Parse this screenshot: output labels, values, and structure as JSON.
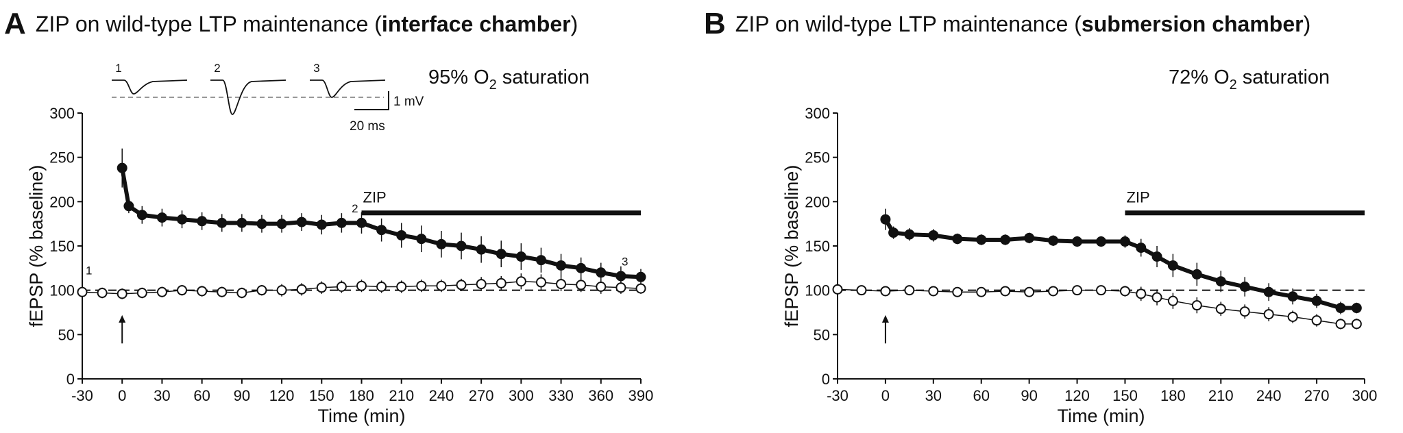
{
  "panels": {
    "A": {
      "letter": "A",
      "title_pre": "ZIP on wild-type LTP maintenance (",
      "title_bold": "interface chamber",
      "title_post": ")",
      "o2_value": "95%",
      "o2_unit_pre": "O",
      "o2_sub": "2",
      "o2_unit_post": "saturation"
    },
    "B": {
      "letter": "B",
      "title_pre": "ZIP on wild-type LTP maintenance (",
      "title_bold": "submersion chamber",
      "title_post": ")",
      "o2_value": "72%",
      "o2_unit_pre": "O",
      "o2_sub": "2",
      "o2_unit_post": "saturation"
    }
  },
  "chart_data": [
    {
      "type": "scatter",
      "panel": "A",
      "xlabel": "Time (min)",
      "ylabel": "fEPSP (% baseline)",
      "xlim": [
        -30,
        390
      ],
      "ylim": [
        0,
        300
      ],
      "xticks": [
        -30,
        0,
        30,
        60,
        90,
        120,
        150,
        180,
        210,
        240,
        270,
        300,
        330,
        360,
        390
      ],
      "yticks": [
        0,
        50,
        100,
        150,
        200,
        250,
        300
      ],
      "baseline": 100,
      "drug_bar": {
        "label": "ZIP",
        "start": 180,
        "end": 390
      },
      "arrow_at": 0,
      "trace_labels": {
        "1": -25,
        "2": 175,
        "3": 378
      },
      "scale_bar": {
        "voltage": "1 mV",
        "time": "20 ms"
      },
      "traces": [
        {
          "label": "1",
          "depth": 0.4
        },
        {
          "label": "2",
          "depth": 1.0
        },
        {
          "label": "3",
          "depth": 0.5
        }
      ],
      "series": [
        {
          "style": "filled",
          "x": [
            0,
            5,
            15,
            30,
            45,
            60,
            75,
            90,
            105,
            120,
            135,
            150,
            165,
            180,
            195,
            210,
            225,
            240,
            255,
            270,
            285,
            300,
            315,
            330,
            345,
            360,
            375,
            390
          ],
          "y": [
            238,
            195,
            185,
            182,
            180,
            178,
            176,
            176,
            175,
            175,
            177,
            174,
            176,
            176,
            168,
            162,
            158,
            152,
            150,
            146,
            141,
            138,
            134,
            128,
            125,
            120,
            116,
            115
          ],
          "err": [
            22,
            8,
            10,
            10,
            10,
            10,
            10,
            10,
            10,
            10,
            10,
            11,
            11,
            12,
            13,
            14,
            15,
            15,
            15,
            15,
            15,
            15,
            14,
            13,
            12,
            11,
            11,
            9
          ]
        },
        {
          "style": "open",
          "x": [
            -30,
            -15,
            0,
            15,
            30,
            45,
            60,
            75,
            90,
            105,
            120,
            135,
            150,
            165,
            180,
            195,
            210,
            225,
            240,
            255,
            270,
            285,
            300,
            315,
            330,
            345,
            360,
            375,
            390
          ],
          "y": [
            98,
            97,
            96,
            97,
            98,
            100,
            99,
            98,
            97,
            100,
            100,
            101,
            103,
            104,
            105,
            104,
            104,
            105,
            105,
            106,
            107,
            108,
            110,
            109,
            107,
            106,
            104,
            103,
            102
          ],
          "err": [
            6,
            6,
            6,
            6,
            6,
            6,
            6,
            6,
            6,
            6,
            7,
            7,
            7,
            7,
            7,
            7,
            7,
            7,
            7,
            7,
            8,
            8,
            9,
            9,
            8,
            8,
            8,
            7,
            6
          ]
        }
      ]
    },
    {
      "type": "scatter",
      "panel": "B",
      "xlabel": "Time (min)",
      "ylabel": "fEPSP (% baseline)",
      "xlim": [
        -30,
        300
      ],
      "ylim": [
        0,
        300
      ],
      "xticks": [
        -30,
        0,
        30,
        60,
        90,
        120,
        150,
        180,
        210,
        240,
        270,
        300
      ],
      "yticks": [
        0,
        50,
        100,
        150,
        200,
        250,
        300
      ],
      "baseline": 100,
      "drug_bar": {
        "label": "ZIP",
        "start": 150,
        "end": 300
      },
      "arrow_at": 0,
      "series": [
        {
          "style": "filled",
          "x": [
            0,
            5,
            15,
            30,
            45,
            60,
            75,
            90,
            105,
            120,
            135,
            150,
            160,
            170,
            180,
            195,
            210,
            225,
            240,
            255,
            270,
            285,
            295
          ],
          "y": [
            180,
            165,
            163,
            162,
            158,
            157,
            157,
            159,
            156,
            155,
            155,
            155,
            148,
            138,
            128,
            118,
            110,
            104,
            98,
            93,
            88,
            80,
            80
          ],
          "err": [
            12,
            7,
            7,
            7,
            6,
            6,
            6,
            6,
            6,
            6,
            6,
            7,
            10,
            12,
            13,
            13,
            12,
            11,
            10,
            9,
            8,
            7,
            6
          ]
        },
        {
          "style": "open",
          "x": [
            -30,
            -15,
            0,
            15,
            30,
            45,
            60,
            75,
            90,
            105,
            120,
            135,
            150,
            160,
            170,
            180,
            195,
            210,
            225,
            240,
            255,
            270,
            285,
            295
          ],
          "y": [
            101,
            100,
            99,
            100,
            99,
            98,
            98,
            99,
            98,
            99,
            100,
            100,
            99,
            96,
            92,
            88,
            83,
            79,
            76,
            73,
            70,
            66,
            62,
            62
          ],
          "err": [
            5,
            5,
            5,
            5,
            5,
            5,
            5,
            5,
            5,
            5,
            5,
            5,
            6,
            8,
            9,
            9,
            9,
            8,
            8,
            8,
            7,
            7,
            6,
            6
          ]
        }
      ]
    }
  ]
}
